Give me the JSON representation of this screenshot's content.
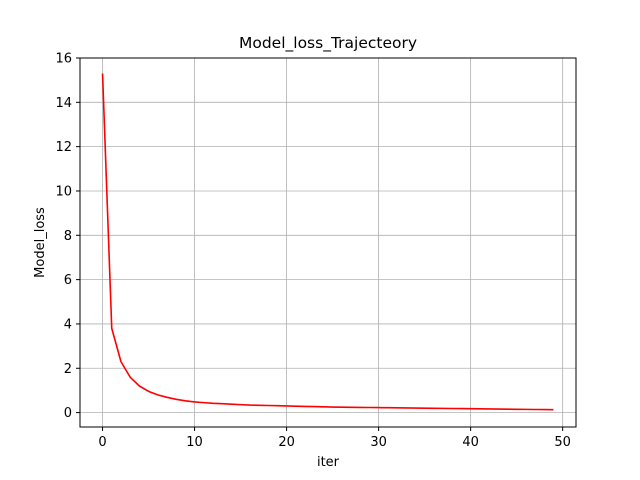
{
  "chart_data": {
    "type": "line",
    "title": "Model_loss_Trajecteory",
    "xlabel": "iter",
    "ylabel": "Model_loss",
    "xlim": [
      -2.45,
      51.45
    ],
    "ylim": [
      -0.65,
      16
    ],
    "xticks": [
      0,
      10,
      20,
      30,
      40,
      50
    ],
    "yticks": [
      0,
      2,
      4,
      6,
      8,
      10,
      12,
      14,
      16
    ],
    "grid": true,
    "series": [
      {
        "color": "#ff0000",
        "x": [
          0,
          1,
          2,
          3,
          4,
          5,
          6,
          7,
          8,
          9,
          10,
          11,
          12,
          13,
          14,
          15,
          16,
          17,
          18,
          19,
          20,
          21,
          22,
          23,
          24,
          25,
          26,
          27,
          28,
          29,
          30,
          31,
          32,
          33,
          34,
          35,
          36,
          37,
          38,
          39,
          40,
          41,
          42,
          43,
          44,
          45,
          46,
          47,
          48,
          49
        ],
        "y": [
          15.3,
          3.8,
          2.3,
          1.6,
          1.2,
          0.96,
          0.8,
          0.69,
          0.6,
          0.53,
          0.48,
          0.45,
          0.42,
          0.4,
          0.38,
          0.36,
          0.34,
          0.33,
          0.32,
          0.31,
          0.3,
          0.29,
          0.28,
          0.27,
          0.26,
          0.25,
          0.245,
          0.24,
          0.235,
          0.23,
          0.225,
          0.22,
          0.215,
          0.21,
          0.205,
          0.2,
          0.195,
          0.19,
          0.185,
          0.18,
          0.175,
          0.17,
          0.165,
          0.16,
          0.155,
          0.15,
          0.145,
          0.14,
          0.135,
          0.13
        ]
      }
    ]
  }
}
